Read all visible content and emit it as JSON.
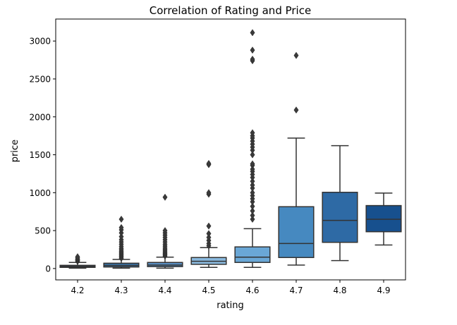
{
  "chart_data": {
    "type": "box",
    "title": "Correlation of Rating and Price",
    "xlabel": "rating",
    "ylabel": "price",
    "categories": [
      "4.2",
      "4.3",
      "4.4",
      "4.5",
      "4.6",
      "4.7",
      "4.8",
      "4.9"
    ],
    "ylim": [
      -150,
      3290
    ],
    "yticks": [
      0,
      500,
      1000,
      1500,
      2000,
      2500,
      3000
    ],
    "grid": false,
    "legend": "none",
    "boxes": [
      {
        "category": "4.2",
        "color": "#2c5a8a",
        "whisker_low": 5,
        "q1": 15,
        "median": 28,
        "q3": 42,
        "whisker_high": 80,
        "outliers": [
          95,
          105,
          115,
          125,
          140,
          155
        ]
      },
      {
        "category": "4.3",
        "color": "#3a6f9f",
        "whisker_low": 5,
        "q1": 20,
        "median": 40,
        "q3": 70,
        "whisker_high": 120,
        "outliers": [
          135,
          150,
          165,
          180,
          195,
          210,
          225,
          245,
          265,
          290,
          320,
          350,
          380,
          420,
          470,
          510,
          540,
          650
        ]
      },
      {
        "category": "4.4",
        "color": "#5a8fc2",
        "whisker_low": 5,
        "q1": 25,
        "median": 45,
        "q3": 80,
        "whisker_high": 150,
        "outliers": [
          165,
          180,
          195,
          210,
          230,
          250,
          270,
          295,
          320,
          350,
          380,
          410,
          440,
          470,
          500,
          940
        ]
      },
      {
        "category": "4.5",
        "color": "#8ab9de",
        "whisker_low": 15,
        "q1": 55,
        "median": 95,
        "q3": 145,
        "whisker_high": 275,
        "outliers": [
          300,
          330,
          370,
          410,
          460,
          560,
          980,
          1000,
          1370,
          1385
        ]
      },
      {
        "category": "4.6",
        "color": "#6aa7d6",
        "whisker_low": 15,
        "q1": 80,
        "median": 150,
        "q3": 285,
        "whisker_high": 525,
        "outliers": [
          650,
          700,
          760,
          820,
          880,
          920,
          960,
          1000,
          1060,
          1100,
          1150,
          1200,
          1240,
          1280,
          1310,
          1360,
          1380,
          1500,
          1560,
          1600,
          1640,
          1680,
          1720,
          1750,
          1790,
          2740,
          2760,
          2880,
          3110
        ]
      },
      {
        "category": "4.7",
        "color": "#4689c0",
        "whisker_low": 45,
        "q1": 145,
        "median": 330,
        "q3": 815,
        "whisker_high": 1720,
        "outliers": [
          2090,
          2810
        ]
      },
      {
        "category": "4.8",
        "color": "#2e6aa5",
        "whisker_low": 105,
        "q1": 345,
        "median": 635,
        "q3": 1005,
        "whisker_high": 1620,
        "outliers": []
      },
      {
        "category": "4.9",
        "color": "#17508e",
        "whisker_low": 310,
        "q1": 485,
        "median": 650,
        "q3": 830,
        "whisker_high": 995,
        "outliers": []
      }
    ]
  }
}
